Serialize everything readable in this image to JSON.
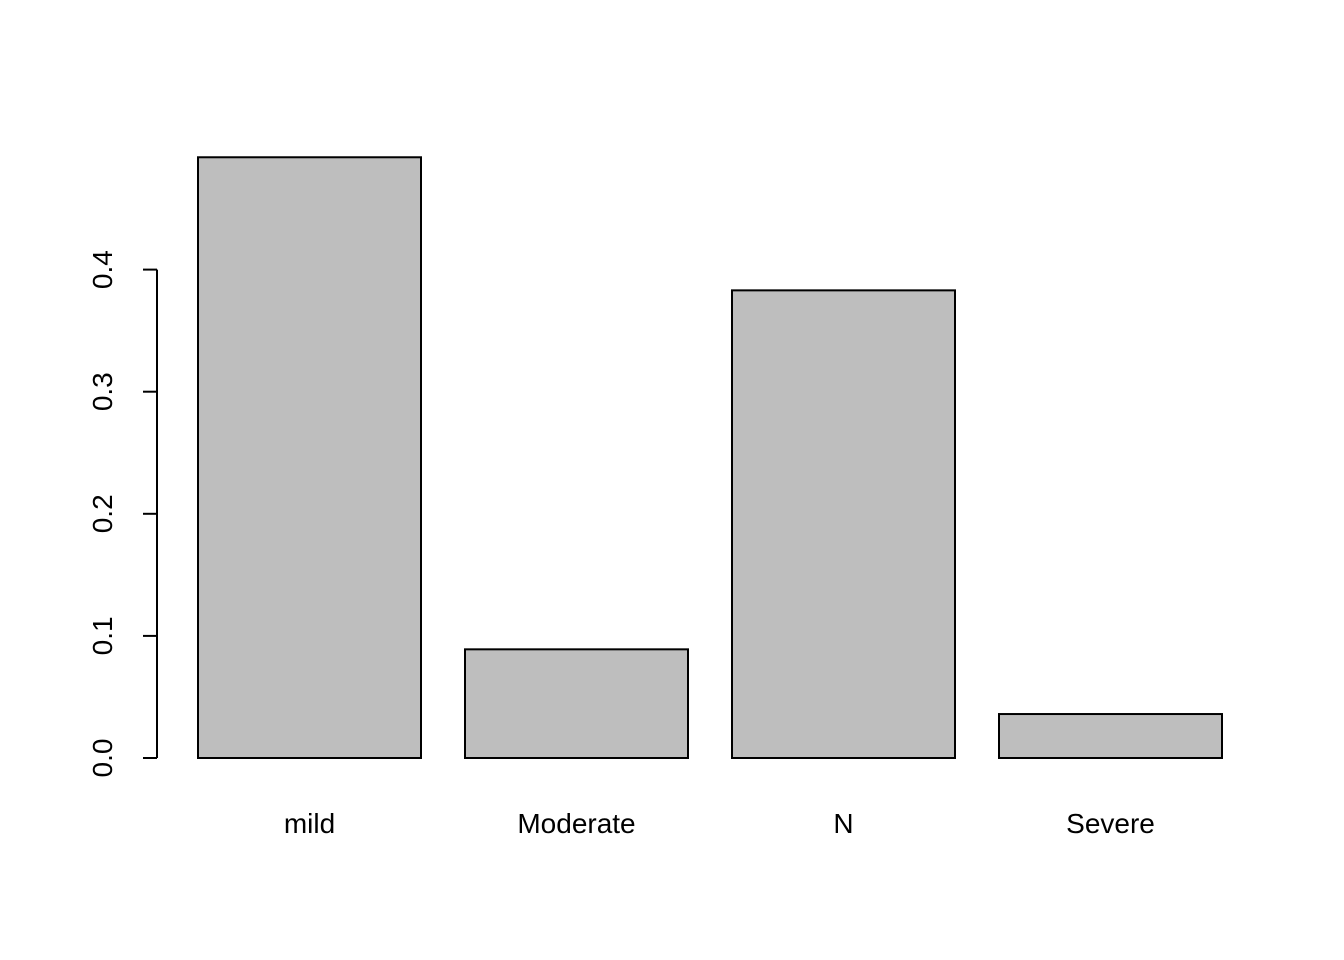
{
  "chart_data": {
    "type": "bar",
    "categories": [
      "mild",
      "Moderate",
      "N",
      "Severe"
    ],
    "values": [
      0.492,
      0.089,
      0.383,
      0.036
    ],
    "ylim": [
      0,
      0.492
    ],
    "yticks": [
      0.0,
      0.1,
      0.2,
      0.3,
      0.4
    ],
    "ytick_labels": [
      "0.0",
      "0.1",
      "0.2",
      "0.3",
      "0.4"
    ],
    "title": "",
    "xlabel": "",
    "ylabel": "",
    "grid": false,
    "colors": {
      "bar_fill": "#bebebe",
      "bar_stroke": "#000000",
      "axis": "#000000",
      "background": "#ffffff"
    }
  }
}
